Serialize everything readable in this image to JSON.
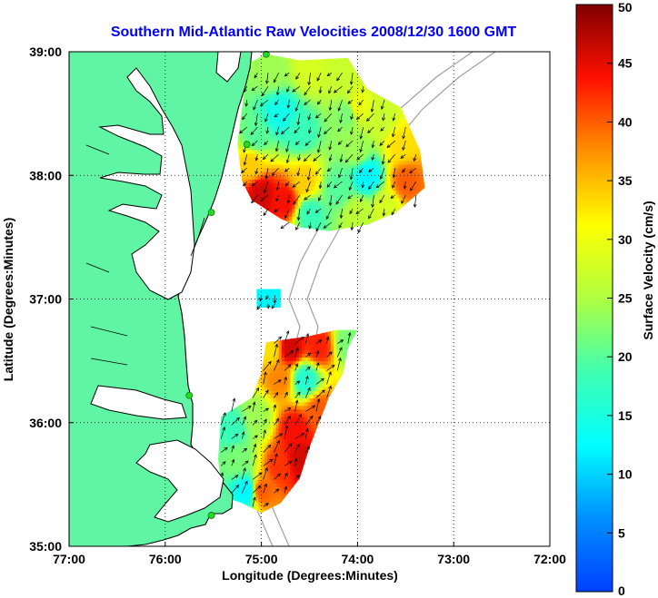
{
  "chart_data": {
    "type": "heatmap",
    "title": "Southern Mid-Atlantic Raw Velocities 2008/12/30 1600 GMT",
    "xlabel": "Longitude (Degrees:Minutes)",
    "ylabel": "Latitude (Degrees:Minutes)",
    "colorbar_label": "Surface Velocity (cm/s)",
    "xlim": [
      -77,
      -72
    ],
    "ylim": [
      35,
      39
    ],
    "clim": [
      0,
      50
    ],
    "x_ticks": [
      {
        "value": -77,
        "label": "77:00"
      },
      {
        "value": -76,
        "label": "76:00"
      },
      {
        "value": -75,
        "label": "75:00"
      },
      {
        "value": -74,
        "label": "74:00"
      },
      {
        "value": -73,
        "label": "73:00"
      },
      {
        "value": -72,
        "label": "72:00"
      }
    ],
    "y_ticks": [
      {
        "value": 35,
        "label": "35:00"
      },
      {
        "value": 36,
        "label": "36:00"
      },
      {
        "value": 37,
        "label": "37:00"
      },
      {
        "value": 38,
        "label": "38:00"
      },
      {
        "value": 39,
        "label": "39:00"
      }
    ],
    "colorbar_ticks": [
      {
        "value": 0,
        "label": "0"
      },
      {
        "value": 5,
        "label": "5"
      },
      {
        "value": 10,
        "label": "10"
      },
      {
        "value": 15,
        "label": "15"
      },
      {
        "value": 20,
        "label": "20"
      },
      {
        "value": 25,
        "label": "25"
      },
      {
        "value": 30,
        "label": "30"
      },
      {
        "value": 35,
        "label": "35"
      },
      {
        "value": 40,
        "label": "40"
      },
      {
        "value": 45,
        "label": "45"
      },
      {
        "value": 50,
        "label": "50"
      }
    ],
    "grid": true,
    "colorbar_placement": "right",
    "colors": {
      "land": "#5ff5a5",
      "coastline": "#000000",
      "bathymetry": "#a0a0a0",
      "station": "#22dd22",
      "title": "#0000ff"
    },
    "regions": [
      {
        "name": "north",
        "outline": [
          [
            -75.15,
            38.9
          ],
          [
            -74.95,
            38.98
          ],
          [
            -74.6,
            38.93
          ],
          [
            -74.1,
            38.95
          ],
          [
            -73.9,
            38.7
          ],
          [
            -73.55,
            38.55
          ],
          [
            -73.35,
            38.2
          ],
          [
            -73.3,
            37.9
          ],
          [
            -73.6,
            37.7
          ],
          [
            -73.9,
            37.6
          ],
          [
            -74.3,
            37.55
          ],
          [
            -74.6,
            37.58
          ],
          [
            -74.8,
            37.65
          ],
          [
            -75.0,
            37.75
          ],
          [
            -75.1,
            37.8
          ],
          [
            -75.2,
            37.95
          ],
          [
            -75.25,
            38.25
          ],
          [
            -75.2,
            38.55
          ]
        ],
        "patches": [
          {
            "lon": -74.9,
            "lat": 38.85,
            "value": 24
          },
          {
            "lon": -74.5,
            "lat": 38.85,
            "value": 28
          },
          {
            "lon": -74.2,
            "lat": 38.8,
            "value": 27
          },
          {
            "lon": -74.0,
            "lat": 38.55,
            "value": 30
          },
          {
            "lon": -73.75,
            "lat": 38.45,
            "value": 27
          },
          {
            "lon": -73.55,
            "lat": 38.25,
            "value": 33
          },
          {
            "lon": -73.5,
            "lat": 37.95,
            "value": 40
          },
          {
            "lon": -74.1,
            "lat": 38.5,
            "value": 22
          },
          {
            "lon": -74.8,
            "lat": 38.5,
            "value": 14
          },
          {
            "lon": -75.05,
            "lat": 38.3,
            "value": 20
          },
          {
            "lon": -74.6,
            "lat": 38.35,
            "value": 18
          },
          {
            "lon": -74.0,
            "lat": 38.2,
            "value": 24
          },
          {
            "lon": -73.9,
            "lat": 38.0,
            "value": 12
          },
          {
            "lon": -74.2,
            "lat": 37.9,
            "value": 20
          },
          {
            "lon": -75.0,
            "lat": 37.85,
            "value": 46
          },
          {
            "lon": -74.75,
            "lat": 37.8,
            "value": 44
          },
          {
            "lon": -74.55,
            "lat": 37.95,
            "value": 34
          },
          {
            "lon": -74.5,
            "lat": 37.7,
            "value": 18
          },
          {
            "lon": -74.0,
            "lat": 37.7,
            "value": 26
          },
          {
            "lon": -73.7,
            "lat": 37.75,
            "value": 28
          },
          {
            "lon": -75.1,
            "lat": 38.1,
            "value": 34
          }
        ],
        "vectors": {
          "lon_range": [
            -75.15,
            -73.35
          ],
          "lat_range": [
            37.62,
            38.88
          ],
          "spacing": 0.11,
          "direction_deg": 215,
          "scale": 0.1
        }
      },
      {
        "name": "mid",
        "outline": [
          [
            -75.05,
            37.08
          ],
          [
            -74.8,
            37.08
          ],
          [
            -74.8,
            36.93
          ],
          [
            -75.05,
            36.93
          ]
        ],
        "patches": [
          {
            "lon": -74.92,
            "lat": 37.0,
            "value": 12
          }
        ],
        "vectors": {
          "lon_range": [
            -75.0,
            -74.85
          ],
          "lat_range": [
            36.96,
            37.05
          ],
          "spacing": 0.07,
          "direction_deg": 200,
          "scale": 0.07
        }
      },
      {
        "name": "south",
        "outline": [
          [
            -74.95,
            36.65
          ],
          [
            -74.5,
            36.7
          ],
          [
            -74.22,
            36.75
          ],
          [
            -74.0,
            36.75
          ],
          [
            -74.1,
            36.6
          ],
          [
            -74.15,
            36.4
          ],
          [
            -74.3,
            36.2
          ],
          [
            -74.5,
            35.8
          ],
          [
            -74.6,
            35.55
          ],
          [
            -74.8,
            35.35
          ],
          [
            -75.0,
            35.27
          ],
          [
            -75.2,
            35.35
          ],
          [
            -75.4,
            35.4
          ],
          [
            -75.45,
            35.7
          ],
          [
            -75.42,
            36.05
          ],
          [
            -75.1,
            36.2
          ],
          [
            -75.0,
            36.4
          ]
        ],
        "patches": [
          {
            "lon": -74.7,
            "lat": 36.6,
            "value": 46
          },
          {
            "lon": -74.4,
            "lat": 36.62,
            "value": 43
          },
          {
            "lon": -74.1,
            "lat": 36.65,
            "value": 22
          },
          {
            "lon": -74.55,
            "lat": 36.35,
            "value": 16
          },
          {
            "lon": -74.8,
            "lat": 36.35,
            "value": 38
          },
          {
            "lon": -74.4,
            "lat": 36.1,
            "value": 40
          },
          {
            "lon": -74.65,
            "lat": 35.95,
            "value": 44
          },
          {
            "lon": -74.8,
            "lat": 35.65,
            "value": 42
          },
          {
            "lon": -74.6,
            "lat": 35.7,
            "value": 46
          },
          {
            "lon": -75.0,
            "lat": 35.45,
            "value": 40
          },
          {
            "lon": -75.25,
            "lat": 35.7,
            "value": 22
          },
          {
            "lon": -75.3,
            "lat": 35.95,
            "value": 18
          },
          {
            "lon": -75.05,
            "lat": 36.05,
            "value": 24
          },
          {
            "lon": -75.15,
            "lat": 35.45,
            "value": 12
          },
          {
            "lon": -74.9,
            "lat": 36.6,
            "value": 33
          }
        ],
        "vectors": {
          "lon_range": [
            -75.42,
            -74.05
          ],
          "lat_range": [
            35.32,
            36.7
          ],
          "spacing": 0.11,
          "direction_deg": 40,
          "scale": 0.11
        }
      }
    ],
    "stations": [
      {
        "lon": -74.95,
        "lat": 38.98
      },
      {
        "lon": -75.15,
        "lat": 38.25
      },
      {
        "lon": -75.52,
        "lat": 37.7
      },
      {
        "lon": -75.75,
        "lat": 36.22
      },
      {
        "lon": -75.52,
        "lat": 35.25
      }
    ]
  }
}
